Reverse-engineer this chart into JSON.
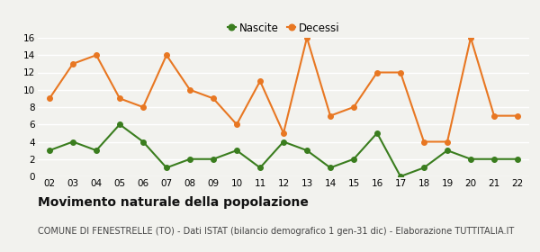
{
  "years": [
    "02",
    "03",
    "04",
    "05",
    "06",
    "07",
    "08",
    "09",
    "10",
    "11",
    "12",
    "13",
    "14",
    "15",
    "16",
    "17",
    "18",
    "19",
    "20",
    "21",
    "22"
  ],
  "nascite": [
    3,
    4,
    3,
    6,
    4,
    1,
    2,
    2,
    3,
    1,
    4,
    3,
    1,
    2,
    5,
    0,
    1,
    3,
    2,
    2,
    2
  ],
  "decessi": [
    9,
    13,
    14,
    9,
    8,
    14,
    10,
    9,
    6,
    11,
    5,
    16,
    7,
    8,
    12,
    12,
    4,
    4,
    16,
    7,
    7
  ],
  "nascite_color": "#3a7d1e",
  "decessi_color": "#e87722",
  "background_color": "#f2f2ee",
  "grid_color": "#ffffff",
  "ylim": [
    0,
    16
  ],
  "yticks": [
    0,
    2,
    4,
    6,
    8,
    10,
    12,
    14,
    16
  ],
  "title": "Movimento naturale della popolazione",
  "subtitle": "COMUNE DI FENESTRELLE (TO) - Dati ISTAT (bilancio demografico 1 gen-31 dic) - Elaborazione TUTTITALIA.IT",
  "title_fontsize": 10,
  "subtitle_fontsize": 7,
  "legend_nascite": "Nascite",
  "legend_decessi": "Decessi",
  "marker_size": 4,
  "line_width": 1.5
}
